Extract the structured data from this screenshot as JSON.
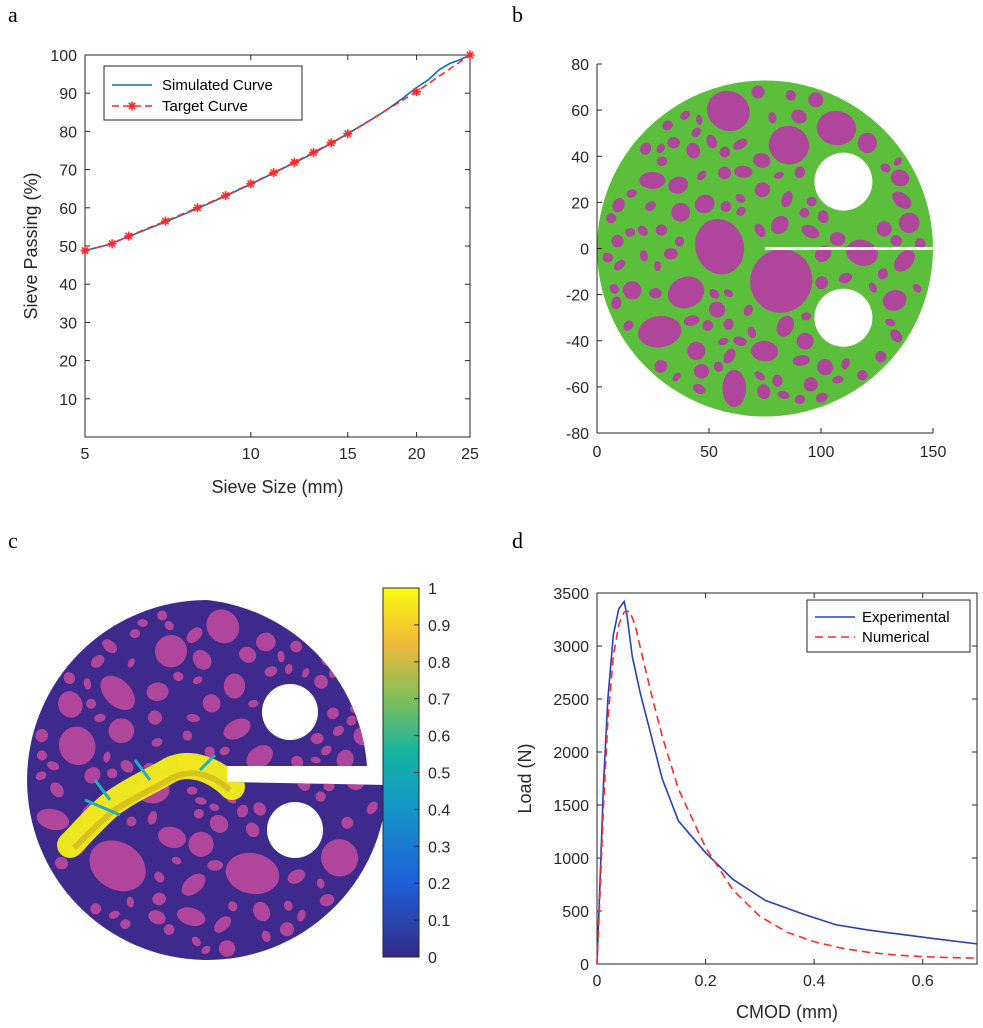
{
  "panel_labels": [
    "a",
    "b",
    "c",
    "d"
  ],
  "colors": {
    "simulated": "#0072bd",
    "target": "#ff2a2a",
    "experimental": "#2342b5",
    "numerical": "#ff2a2a",
    "mortar": "#5bbf3c",
    "aggregate": "#b0469c",
    "damage_background": "#3d2a8c",
    "axis": "#262626"
  },
  "chart_data": [
    {
      "panel": "a",
      "type": "line",
      "xlabel": "Sieve Size (mm)",
      "ylabel": "Sieve Passing (%)",
      "xscale": "log",
      "xlim": [
        5,
        25
      ],
      "ylim": [
        0,
        100
      ],
      "xticks": [
        5,
        10,
        15,
        20,
        25
      ],
      "xtick_labels": [
        "5",
        "10",
        "15",
        "20",
        "25"
      ],
      "yticks": [
        10,
        20,
        30,
        40,
        50,
        60,
        70,
        80,
        90,
        100
      ],
      "ytick_labels": [
        "10",
        "20",
        "30",
        "40",
        "50",
        "60",
        "70",
        "80",
        "90",
        "100"
      ],
      "legend_position": "top-left",
      "series": [
        {
          "name": "Simulated Curve",
          "style": "solid",
          "x": [
            5,
            5.5,
            6,
            7,
            8,
            9,
            10,
            11,
            12,
            13,
            14,
            15,
            16,
            17,
            18,
            19,
            20,
            21,
            22,
            23,
            24,
            25
          ],
          "y": [
            48.8,
            50.3,
            52.5,
            56.3,
            59.8,
            63.1,
            66.2,
            69.1,
            71.8,
            74.3,
            76.9,
            79.4,
            81.8,
            84.1,
            86.5,
            89.0,
            91.5,
            93.5,
            96.2,
            97.8,
            98.8,
            100
          ]
        },
        {
          "name": "Target Curve",
          "style": "dashed",
          "marker": "asterisk",
          "x": [
            5,
            5.6,
            6,
            7,
            8,
            9,
            10,
            11,
            12,
            13,
            14,
            15,
            20,
            25
          ],
          "y": [
            48.8,
            50.6,
            52.6,
            56.5,
            60.0,
            63.2,
            66.3,
            69.2,
            71.9,
            74.5,
            77.0,
            79.4,
            90.4,
            100
          ]
        }
      ]
    },
    {
      "panel": "b",
      "type": "scatter",
      "note_kind": "mesh",
      "xlim": [
        0,
        150
      ],
      "ylim": [
        -80,
        80
      ],
      "xticks": [
        0,
        50,
        100,
        150
      ],
      "xtick_labels": [
        "0",
        "50",
        "100",
        "150"
      ],
      "yticks": [
        -80,
        -60,
        -40,
        -20,
        0,
        20,
        40,
        60,
        80
      ],
      "ytick_labels": [
        "-80",
        "-60",
        "-40",
        "-20",
        "0",
        "20",
        "40",
        "60",
        "80"
      ]
    },
    {
      "panel": "c",
      "type": "heatmap",
      "colorbar_ticks": [
        0,
        0.1,
        0.2,
        0.3,
        0.4,
        0.5,
        0.6,
        0.7,
        0.8,
        0.9,
        1
      ],
      "colorbar_labels": [
        "0",
        "0.1",
        "0.2",
        "0.3",
        "0.4",
        "0.5",
        "0.6",
        "0.7",
        "0.8",
        "0.9",
        "1"
      ]
    },
    {
      "panel": "d",
      "type": "line",
      "xlabel": "CMOD (mm)",
      "ylabel": "Load (N)",
      "xlim": [
        0,
        0.7
      ],
      "ylim": [
        0,
        3500
      ],
      "xticks": [
        0,
        0.2,
        0.4,
        0.6
      ],
      "xtick_labels": [
        "0",
        "0.2",
        "0.4",
        "0.6"
      ],
      "yticks": [
        0,
        500,
        1000,
        1500,
        2000,
        2500,
        3000,
        3500
      ],
      "ytick_labels": [
        "0",
        "500",
        "1000",
        "1500",
        "2000",
        "2500",
        "3000",
        "3500"
      ],
      "legend_position": "top-right",
      "series": [
        {
          "name": "Experimental",
          "style": "solid",
          "x": [
            0,
            0.005,
            0.012,
            0.02,
            0.03,
            0.04,
            0.05,
            0.055,
            0.065,
            0.08,
            0.1,
            0.12,
            0.15,
            0.2,
            0.25,
            0.31,
            0.38,
            0.44,
            0.5,
            0.56,
            0.62,
            0.7
          ],
          "y": [
            0,
            700,
            1700,
            2500,
            3100,
            3350,
            3420,
            3300,
            2900,
            2550,
            2150,
            1750,
            1350,
            1050,
            800,
            600,
            470,
            370,
            320,
            280,
            240,
            190
          ]
        },
        {
          "name": "Numerical",
          "style": "dashed",
          "x": [
            0,
            0.005,
            0.012,
            0.02,
            0.03,
            0.04,
            0.05,
            0.06,
            0.07,
            0.08,
            0.1,
            0.12,
            0.15,
            0.2,
            0.25,
            0.3,
            0.35,
            0.4,
            0.45,
            0.5,
            0.55,
            0.6,
            0.65,
            0.7
          ],
          "y": [
            0,
            600,
            1500,
            2300,
            2900,
            3200,
            3320,
            3330,
            3200,
            2980,
            2550,
            2150,
            1650,
            1100,
            700,
            450,
            300,
            210,
            150,
            110,
            85,
            70,
            60,
            55
          ]
        }
      ]
    }
  ]
}
